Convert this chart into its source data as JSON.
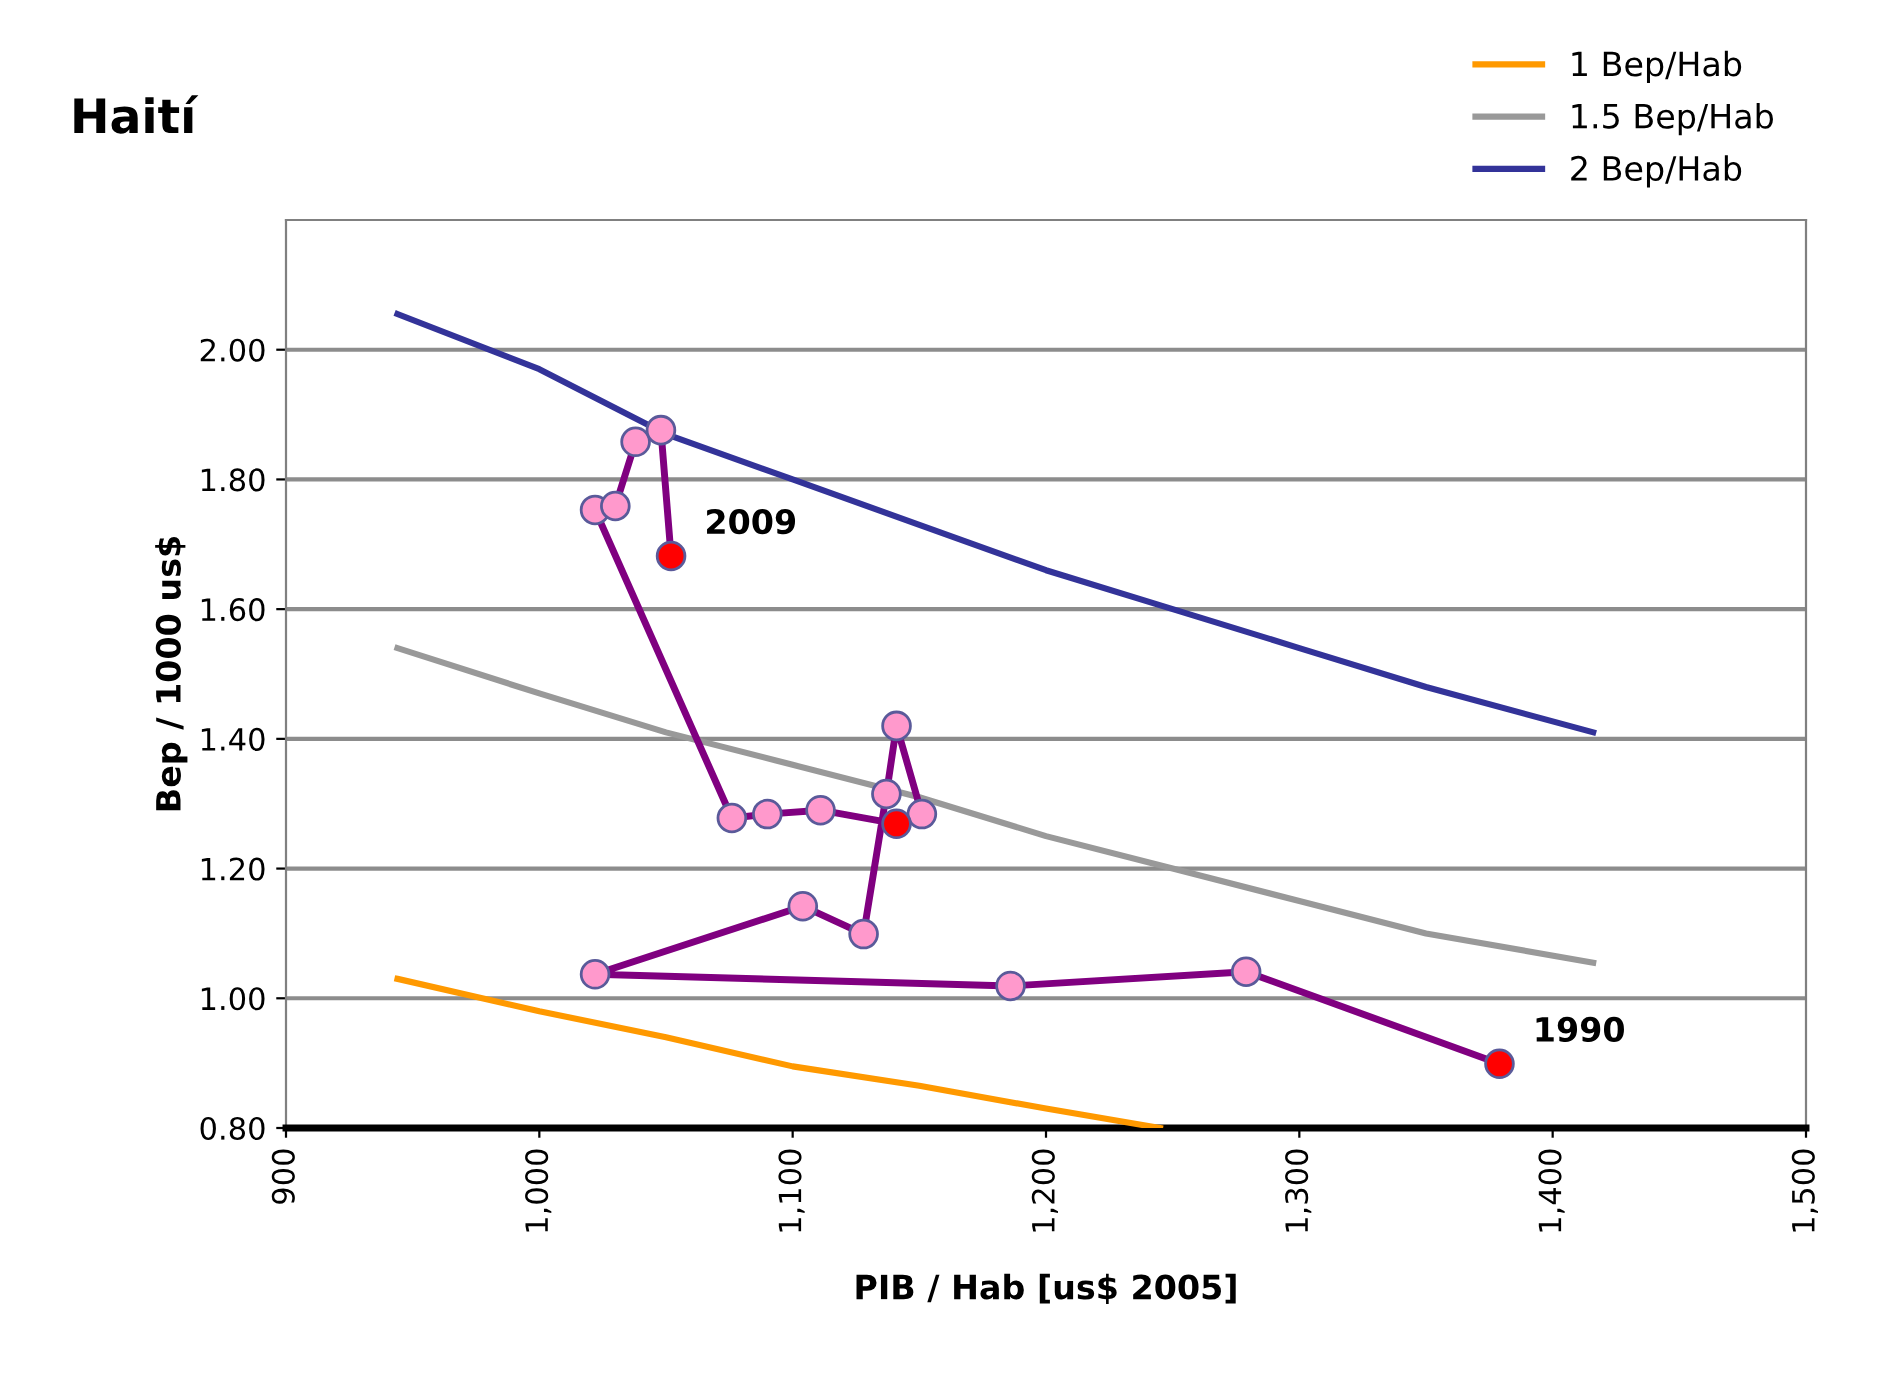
{
  "chart_data": {
    "type": "line",
    "title": "Haití",
    "xlabel": "PIB / Hab [us$ 2005]",
    "ylabel": "Bep / 1000 us$",
    "xlim": [
      900,
      1500
    ],
    "ylim": [
      0.8,
      2.2
    ],
    "xticks": [
      900,
      {
        "value": 1000,
        "label": "1,000"
      },
      {
        "value": 1100,
        "label": "1,100"
      },
      {
        "value": 1200,
        "label": "1,200"
      },
      {
        "value": 1300,
        "label": "1,300"
      },
      {
        "value": 1400,
        "label": "1,400"
      },
      {
        "value": 1500,
        "label": "1,500"
      }
    ],
    "yticks": [
      {
        "value": 0.8,
        "label": "0.80"
      },
      {
        "value": 1.0,
        "label": "1.00"
      },
      {
        "value": 1.2,
        "label": "1.20"
      },
      {
        "value": 1.4,
        "label": "1.40"
      },
      {
        "value": 1.6,
        "label": "1.60"
      },
      {
        "value": 1.8,
        "label": "1.80"
      },
      {
        "value": 2.0,
        "label": "2.00"
      }
    ],
    "grid": "y",
    "legend": "top right",
    "series": [
      {
        "name": "1 Bep/Hab",
        "color": "#ff9900",
        "x": [
          944,
          1000,
          1050,
          1100,
          1150,
          1200,
          1245
        ],
        "values": [
          1.03,
          0.98,
          0.94,
          0.895,
          0.865,
          0.83,
          0.8
        ]
      },
      {
        "name": "1.5 Bep/Hab",
        "color": "#999999",
        "x": [
          944,
          1000,
          1050,
          1100,
          1150,
          1200,
          1250,
          1300,
          1350,
          1416
        ],
        "values": [
          1.54,
          1.47,
          1.41,
          1.36,
          1.31,
          1.25,
          1.2,
          1.15,
          1.1,
          1.055
        ]
      },
      {
        "name": "2 Bep/Hab",
        "color": "#333399",
        "x": [
          944,
          1000,
          1050,
          1100,
          1150,
          1200,
          1250,
          1300,
          1350,
          1416
        ],
        "values": [
          2.055,
          1.97,
          1.87,
          1.8,
          1.73,
          1.66,
          1.6,
          1.54,
          1.48,
          1.41
        ]
      },
      {
        "color": "#800080",
        "marker": "circle",
        "colors": [
          "#ff0000",
          "#ff99cc",
          "#ff99cc",
          "#ff99cc",
          "#ff99cc",
          "#ff99cc",
          "#ff99cc",
          "#ff99cc",
          "#ff99cc",
          "#ff0000",
          "#ff99cc",
          "#ff99cc",
          "#ff99cc",
          "#ff99cc",
          "#ff99cc",
          "#ff99cc",
          "#ff99cc",
          "#ff0000"
        ],
        "x": [
          1379,
          1279,
          1186,
          1022,
          1104,
          1128,
          1137,
          1141,
          1151,
          1141,
          1111,
          1090,
          1076,
          1022,
          1030,
          1038,
          1048,
          1052
        ],
        "values": [
          0.899,
          1.041,
          1.019,
          1.037,
          1.142,
          1.099,
          1.315,
          1.42,
          1.284,
          1.269,
          1.29,
          1.284,
          1.278,
          1.753,
          1.759,
          1.858,
          1.876,
          1.682
        ]
      }
    ],
    "annotations": [
      {
        "text": "2009",
        "x": 1052,
        "y": 1.682
      },
      {
        "text": "1990",
        "x": 1379,
        "y": 0.899
      }
    ]
  }
}
